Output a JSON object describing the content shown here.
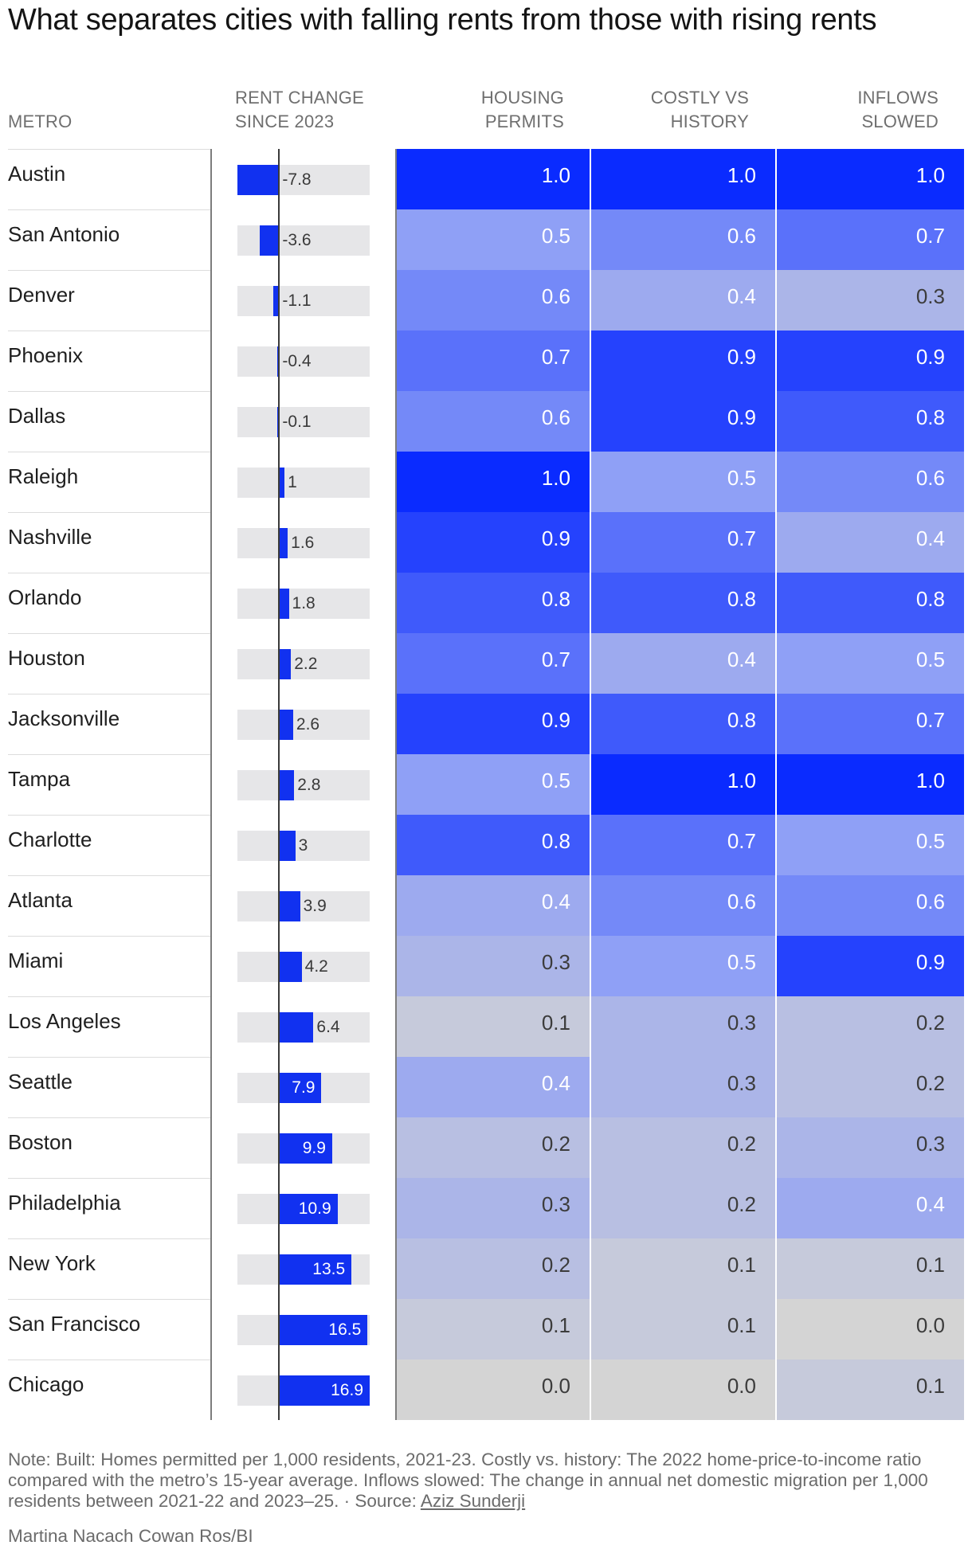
{
  "title": "What separates cities with falling rents from those with rising rents",
  "headers": {
    "metro": "METRO",
    "rent_change": [
      "RENT CHANGE",
      "SINCE 2023"
    ],
    "housing_permits": [
      "HOUSING",
      "PERMITS"
    ],
    "costly_vs_history": [
      "COSTLY VS",
      "HISTORY"
    ],
    "inflows_slowed": [
      "INFLOWS",
      "SLOWED"
    ]
  },
  "note": {
    "text": "Note: Built: Homes permitted per 1,000 residents, 2021-23. Costly vs. history: The 2022 home-price-to-income ratio compared with the metro’s 15-year average. Inflows slowed: The change in annual net domestic migration per 1,000 residents between 2021-22 and 2023–25. · Source: ",
    "source_link": "Aziz Sunderji"
  },
  "credit": "Martina Nacach Cowan Ros/BI",
  "colors": {
    "bar": "#1131f0",
    "track": "#e6e6e8",
    "scale_high": "#0a2bff",
    "scale_mid": "#8fa0f6",
    "scale_low": "#d4d4d4"
  },
  "chart_data": {
    "type": "table",
    "bar_range": [
      -7.8,
      16.9
    ],
    "columns": [
      "Metro",
      "Rent change since 2023",
      "Housing permits",
      "Costly vs history",
      "Inflows slowed"
    ],
    "rows": [
      {
        "metro": "Austin",
        "rent": -7.8,
        "rent_label": "-7.8",
        "permits": "1.0",
        "costly": "1.0",
        "inflows": "1.0"
      },
      {
        "metro": "San Antonio",
        "rent": -3.6,
        "rent_label": "-3.6",
        "permits": "0.5",
        "costly": "0.6",
        "inflows": "0.7"
      },
      {
        "metro": "Denver",
        "rent": -1.1,
        "rent_label": "-1.1",
        "permits": "0.6",
        "costly": "0.4",
        "inflows": "0.3"
      },
      {
        "metro": "Phoenix",
        "rent": -0.4,
        "rent_label": "-0.4",
        "permits": "0.7",
        "costly": "0.9",
        "inflows": "0.9"
      },
      {
        "metro": "Dallas",
        "rent": -0.1,
        "rent_label": "-0.1",
        "permits": "0.6",
        "costly": "0.9",
        "inflows": "0.8"
      },
      {
        "metro": "Raleigh",
        "rent": 1,
        "rent_label": "1",
        "permits": "1.0",
        "costly": "0.5",
        "inflows": "0.6"
      },
      {
        "metro": "Nashville",
        "rent": 1.6,
        "rent_label": "1.6",
        "permits": "0.9",
        "costly": "0.7",
        "inflows": "0.4"
      },
      {
        "metro": "Orlando",
        "rent": 1.8,
        "rent_label": "1.8",
        "permits": "0.8",
        "costly": "0.8",
        "inflows": "0.8"
      },
      {
        "metro": "Houston",
        "rent": 2.2,
        "rent_label": "2.2",
        "permits": "0.7",
        "costly": "0.4",
        "inflows": "0.5"
      },
      {
        "metro": "Jacksonville",
        "rent": 2.6,
        "rent_label": "2.6",
        "permits": "0.9",
        "costly": "0.8",
        "inflows": "0.7"
      },
      {
        "metro": "Tampa",
        "rent": 2.8,
        "rent_label": "2.8",
        "permits": "0.5",
        "costly": "1.0",
        "inflows": "1.0"
      },
      {
        "metro": "Charlotte",
        "rent": 3,
        "rent_label": "3",
        "permits": "0.8",
        "costly": "0.7",
        "inflows": "0.5"
      },
      {
        "metro": "Atlanta",
        "rent": 3.9,
        "rent_label": "3.9",
        "permits": "0.4",
        "costly": "0.6",
        "inflows": "0.6"
      },
      {
        "metro": "Miami",
        "rent": 4.2,
        "rent_label": "4.2",
        "permits": "0.3",
        "costly": "0.5",
        "inflows": "0.9"
      },
      {
        "metro": "Los Angeles",
        "rent": 6.4,
        "rent_label": "6.4",
        "permits": "0.1",
        "costly": "0.3",
        "inflows": "0.2"
      },
      {
        "metro": "Seattle",
        "rent": 7.9,
        "rent_label": "7.9",
        "permits": "0.4",
        "costly": "0.3",
        "inflows": "0.2"
      },
      {
        "metro": "Boston",
        "rent": 9.9,
        "rent_label": "9.9",
        "permits": "0.2",
        "costly": "0.2",
        "inflows": "0.3"
      },
      {
        "metro": "Philadelphia",
        "rent": 10.9,
        "rent_label": "10.9",
        "permits": "0.3",
        "costly": "0.2",
        "inflows": "0.4"
      },
      {
        "metro": "New York",
        "rent": 13.5,
        "rent_label": "13.5",
        "permits": "0.2",
        "costly": "0.1",
        "inflows": "0.1"
      },
      {
        "metro": "San Francisco",
        "rent": 16.5,
        "rent_label": "16.5",
        "permits": "0.1",
        "costly": "0.1",
        "inflows": "0.0"
      },
      {
        "metro": "Chicago",
        "rent": 16.9,
        "rent_label": "16.9",
        "permits": "0.0",
        "costly": "0.0",
        "inflows": "0.1"
      }
    ]
  }
}
